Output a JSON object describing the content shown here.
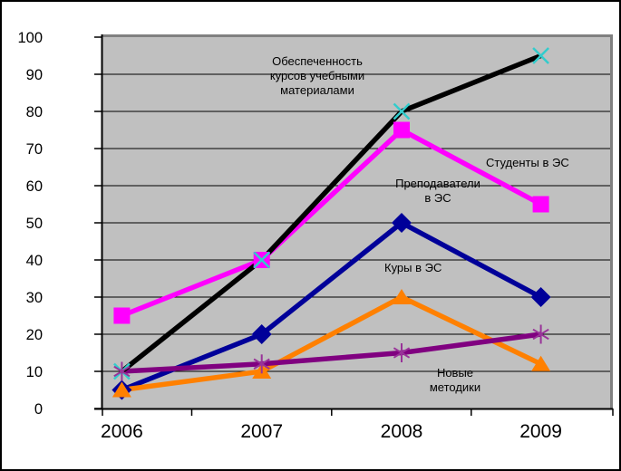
{
  "chart_data": {
    "type": "line",
    "title": "",
    "categories": [
      "2006",
      "2007",
      "2008",
      "2009"
    ],
    "xlabel": "",
    "ylabel": "",
    "ylim": [
      0,
      100
    ],
    "ytick_step": 10,
    "grid": "horizontal-black",
    "legend_position": "none (in-plot text labels)",
    "plot_background": "#C0C0C0",
    "plot_border_color": "#808080",
    "axis_color": "#000000",
    "series": [
      {
        "name": "Обеспеченность курсов учебными материалами",
        "values": [
          10,
          40,
          80,
          95
        ],
        "color": "#000000",
        "marker": "x-cross",
        "marker_color": "#33CCCC"
      },
      {
        "name": "Студенты в ЭС",
        "values": [
          25,
          40,
          75,
          55
        ],
        "color": "#FF00FF",
        "marker": "square",
        "marker_color": "#FF00FF"
      },
      {
        "name": "Преподаватели в ЭС",
        "values": [
          5,
          20,
          50,
          30
        ],
        "color": "#000099",
        "marker": "diamond",
        "marker_color": "#000099"
      },
      {
        "name": "Куры в ЭС",
        "values": [
          5,
          10,
          30,
          12
        ],
        "color": "#FF8000",
        "marker": "triangle",
        "marker_color": "#FF8000"
      },
      {
        "name": "Новые методики",
        "values": [
          10,
          12,
          15,
          20
        ],
        "color": "#800080",
        "marker": "asterisk",
        "marker_color": "#993399"
      }
    ],
    "annotations": [
      {
        "text": "Обеспеченность\nкурсов учебными\nматериалами"
      },
      {
        "text": "Студенты в ЭС"
      },
      {
        "text": "Преподаватели\nв ЭС"
      },
      {
        "text": "Куры в ЭС"
      },
      {
        "text": "Новые\nметодики"
      }
    ],
    "ytick_labels": [
      "0",
      "10",
      "20",
      "30",
      "40",
      "50",
      "60",
      "70",
      "80",
      "90",
      "100"
    ]
  }
}
